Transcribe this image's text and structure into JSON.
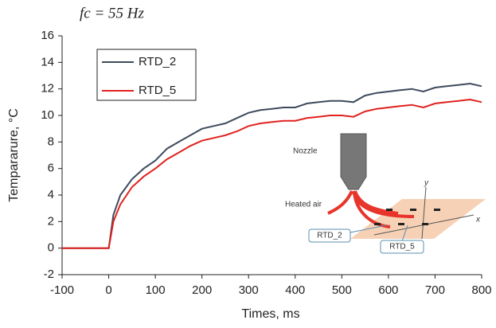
{
  "chart_data": {
    "type": "line",
    "title": "fc = 55 Hz",
    "x_label": "Times, ms",
    "y_label": "Tempararure, °C",
    "x": [
      -100,
      -75,
      -50,
      -25,
      0,
      10,
      25,
      50,
      75,
      100,
      125,
      150,
      175,
      200,
      225,
      250,
      275,
      300,
      325,
      350,
      375,
      400,
      425,
      450,
      475,
      500,
      525,
      550,
      575,
      600,
      625,
      650,
      675,
      700,
      725,
      750,
      775,
      800
    ],
    "series": [
      {
        "name": "RTD_2",
        "color": "#3e4a5c",
        "values": [
          0,
          0,
          0,
          0,
          0,
          2.5,
          4,
          5.2,
          6,
          6.6,
          7.5,
          8,
          8.5,
          9,
          9.2,
          9.4,
          9.8,
          10.2,
          10.4,
          10.5,
          10.6,
          10.6,
          10.9,
          11,
          11.1,
          11.1,
          11,
          11.5,
          11.7,
          11.8,
          11.9,
          12,
          11.8,
          12.1,
          12.2,
          12.3,
          12.4,
          12.2
        ]
      },
      {
        "name": "RTD_5",
        "color": "#e0221e",
        "values": [
          0,
          0,
          0,
          0,
          0,
          2,
          3.3,
          4.6,
          5.4,
          6,
          6.7,
          7.2,
          7.7,
          8.1,
          8.3,
          8.5,
          8.8,
          9.2,
          9.4,
          9.5,
          9.6,
          9.6,
          9.8,
          9.9,
          10,
          10,
          9.9,
          10.3,
          10.5,
          10.6,
          10.7,
          10.8,
          10.6,
          10.9,
          11,
          11.1,
          11.2,
          11
        ]
      }
    ],
    "xlim": [
      -100,
      800
    ],
    "xticks": [
      -100,
      0,
      100,
      200,
      300,
      400,
      500,
      600,
      700,
      800
    ],
    "ylim": [
      -2,
      16
    ],
    "yticks": [
      -2,
      0,
      2,
      4,
      6,
      8,
      10,
      12,
      14,
      16
    ],
    "annotations": [
      "Nozzle",
      "Heated air",
      "RTD_2",
      "RTD_5",
      "y",
      "x"
    ]
  }
}
